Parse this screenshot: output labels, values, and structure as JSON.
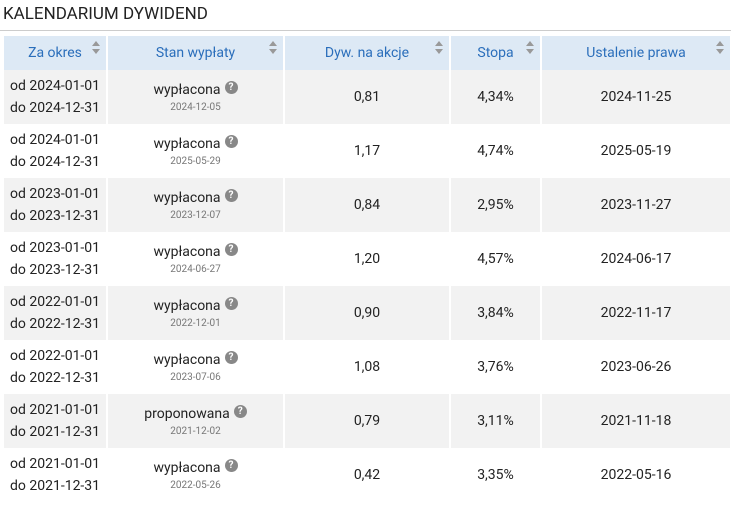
{
  "header": {
    "title": "KALENDARIUM DYWIDEND"
  },
  "table": {
    "columns": [
      "Za okres",
      "Stan wypłaty",
      "Dyw. na akcje",
      "Stopa",
      "Ustalenie prawa"
    ],
    "rows": [
      {
        "period_from": "od 2024-01-01",
        "period_to": "do 2024-12-31",
        "status": "wypłacona",
        "status_date": "2024-12-05",
        "dividend": "0,81",
        "yield": "4,34%",
        "record_date": "2024-11-25"
      },
      {
        "period_from": "od 2024-01-01",
        "period_to": "do 2024-12-31",
        "status": "wypłacona",
        "status_date": "2025-05-29",
        "dividend": "1,17",
        "yield": "4,74%",
        "record_date": "2025-05-19"
      },
      {
        "period_from": "od 2023-01-01",
        "period_to": "do 2023-12-31",
        "status": "wypłacona",
        "status_date": "2023-12-07",
        "dividend": "0,84",
        "yield": "2,95%",
        "record_date": "2023-11-27"
      },
      {
        "period_from": "od 2023-01-01",
        "period_to": "do 2023-12-31",
        "status": "wypłacona",
        "status_date": "2024-06-27",
        "dividend": "1,20",
        "yield": "4,57%",
        "record_date": "2024-06-17"
      },
      {
        "period_from": "od 2022-01-01",
        "period_to": "do 2022-12-31",
        "status": "wypłacona",
        "status_date": "2022-12-01",
        "dividend": "0,90",
        "yield": "3,84%",
        "record_date": "2022-11-17"
      },
      {
        "period_from": "od 2022-01-01",
        "period_to": "do 2022-12-31",
        "status": "wypłacona",
        "status_date": "2023-07-06",
        "dividend": "1,08",
        "yield": "3,76%",
        "record_date": "2023-06-26"
      },
      {
        "period_from": "od 2021-01-01",
        "period_to": "do 2021-12-31",
        "status": "proponowana",
        "status_date": "2021-12-02",
        "dividend": "0,79",
        "yield": "3,11%",
        "record_date": "2021-11-18"
      },
      {
        "period_from": "od 2021-01-01",
        "period_to": "do 2021-12-31",
        "status": "wypłacona",
        "status_date": "2022-05-26",
        "dividend": "0,42",
        "yield": "3,35%",
        "record_date": "2022-05-16"
      }
    ]
  }
}
